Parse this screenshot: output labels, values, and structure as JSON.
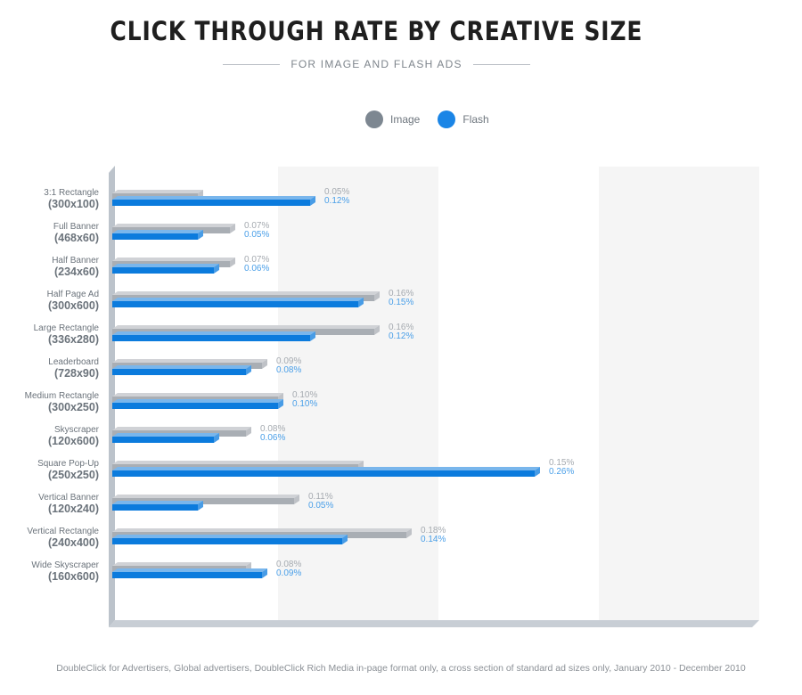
{
  "header": {
    "title": "CLICK THROUGH RATE BY CREATIVE SIZE",
    "subtitle": "FOR IMAGE AND FLASH ADS"
  },
  "footer": {
    "source": "DoubleClick for Advertisers, Global advertisers, DoubleClick Rich Media in-page format only, a cross section of standard ad sizes only, January 2010 - December 2010"
  },
  "colors": {
    "image": "#7d8791",
    "flash": "#1a85e6",
    "image_bar": "#a9aeb4",
    "flash_bar": "#0b7bdd",
    "image_label": "#a5aab0",
    "flash_label": "#4a9fe8",
    "band": "#f5f5f5",
    "axis": "#c8ced5"
  },
  "chart_data": {
    "type": "bar",
    "orientation": "horizontal",
    "title": "CLICK THROUGH RATE BY CREATIVE SIZE",
    "subtitle": "FOR IMAGE AND FLASH ADS",
    "xlim": [
      0,
      0.4
    ],
    "legend_position": "top",
    "categories": [
      {
        "name": "3:1 Rectangle",
        "size": "(300x100)"
      },
      {
        "name": "Full Banner",
        "size": "(468x60)"
      },
      {
        "name": "Half Banner",
        "size": "(234x60)"
      },
      {
        "name": "Half Page Ad",
        "size": "(300x600)"
      },
      {
        "name": "Large Rectangle",
        "size": "(336x280)"
      },
      {
        "name": "Leaderboard",
        "size": "(728x90)"
      },
      {
        "name": "Medium Rectangle",
        "size": "(300x250)"
      },
      {
        "name": "Skyscraper",
        "size": "(120x600)"
      },
      {
        "name": "Square Pop-Up",
        "size": "(250x250)"
      },
      {
        "name": "Vertical Banner",
        "size": "(120x240)"
      },
      {
        "name": "Vertical Rectangle",
        "size": "(240x400)"
      },
      {
        "name": "Wide Skyscraper",
        "size": "(160x600)"
      }
    ],
    "series": [
      {
        "name": "Image",
        "values": [
          0.05,
          0.07,
          0.07,
          0.16,
          0.16,
          0.09,
          0.1,
          0.08,
          0.15,
          0.11,
          0.18,
          0.08
        ],
        "labels": [
          "0.05%",
          "0.07%",
          "0.07%",
          "0.16%",
          "0.16%",
          "0.09%",
          "0.10%",
          "0.08%",
          "0.15%",
          "0.11%",
          "0.18%",
          "0.08%"
        ]
      },
      {
        "name": "Flash",
        "values": [
          0.12,
          0.05,
          0.06,
          0.15,
          0.12,
          0.08,
          0.1,
          0.06,
          0.26,
          0.05,
          0.14,
          0.09
        ],
        "labels": [
          "0.12%",
          "0.05%",
          "0.06%",
          "0.15%",
          "0.12%",
          "0.08%",
          "0.10%",
          "0.06%",
          "0.26%",
          "0.05%",
          "0.14%",
          "0.09%"
        ]
      }
    ]
  }
}
